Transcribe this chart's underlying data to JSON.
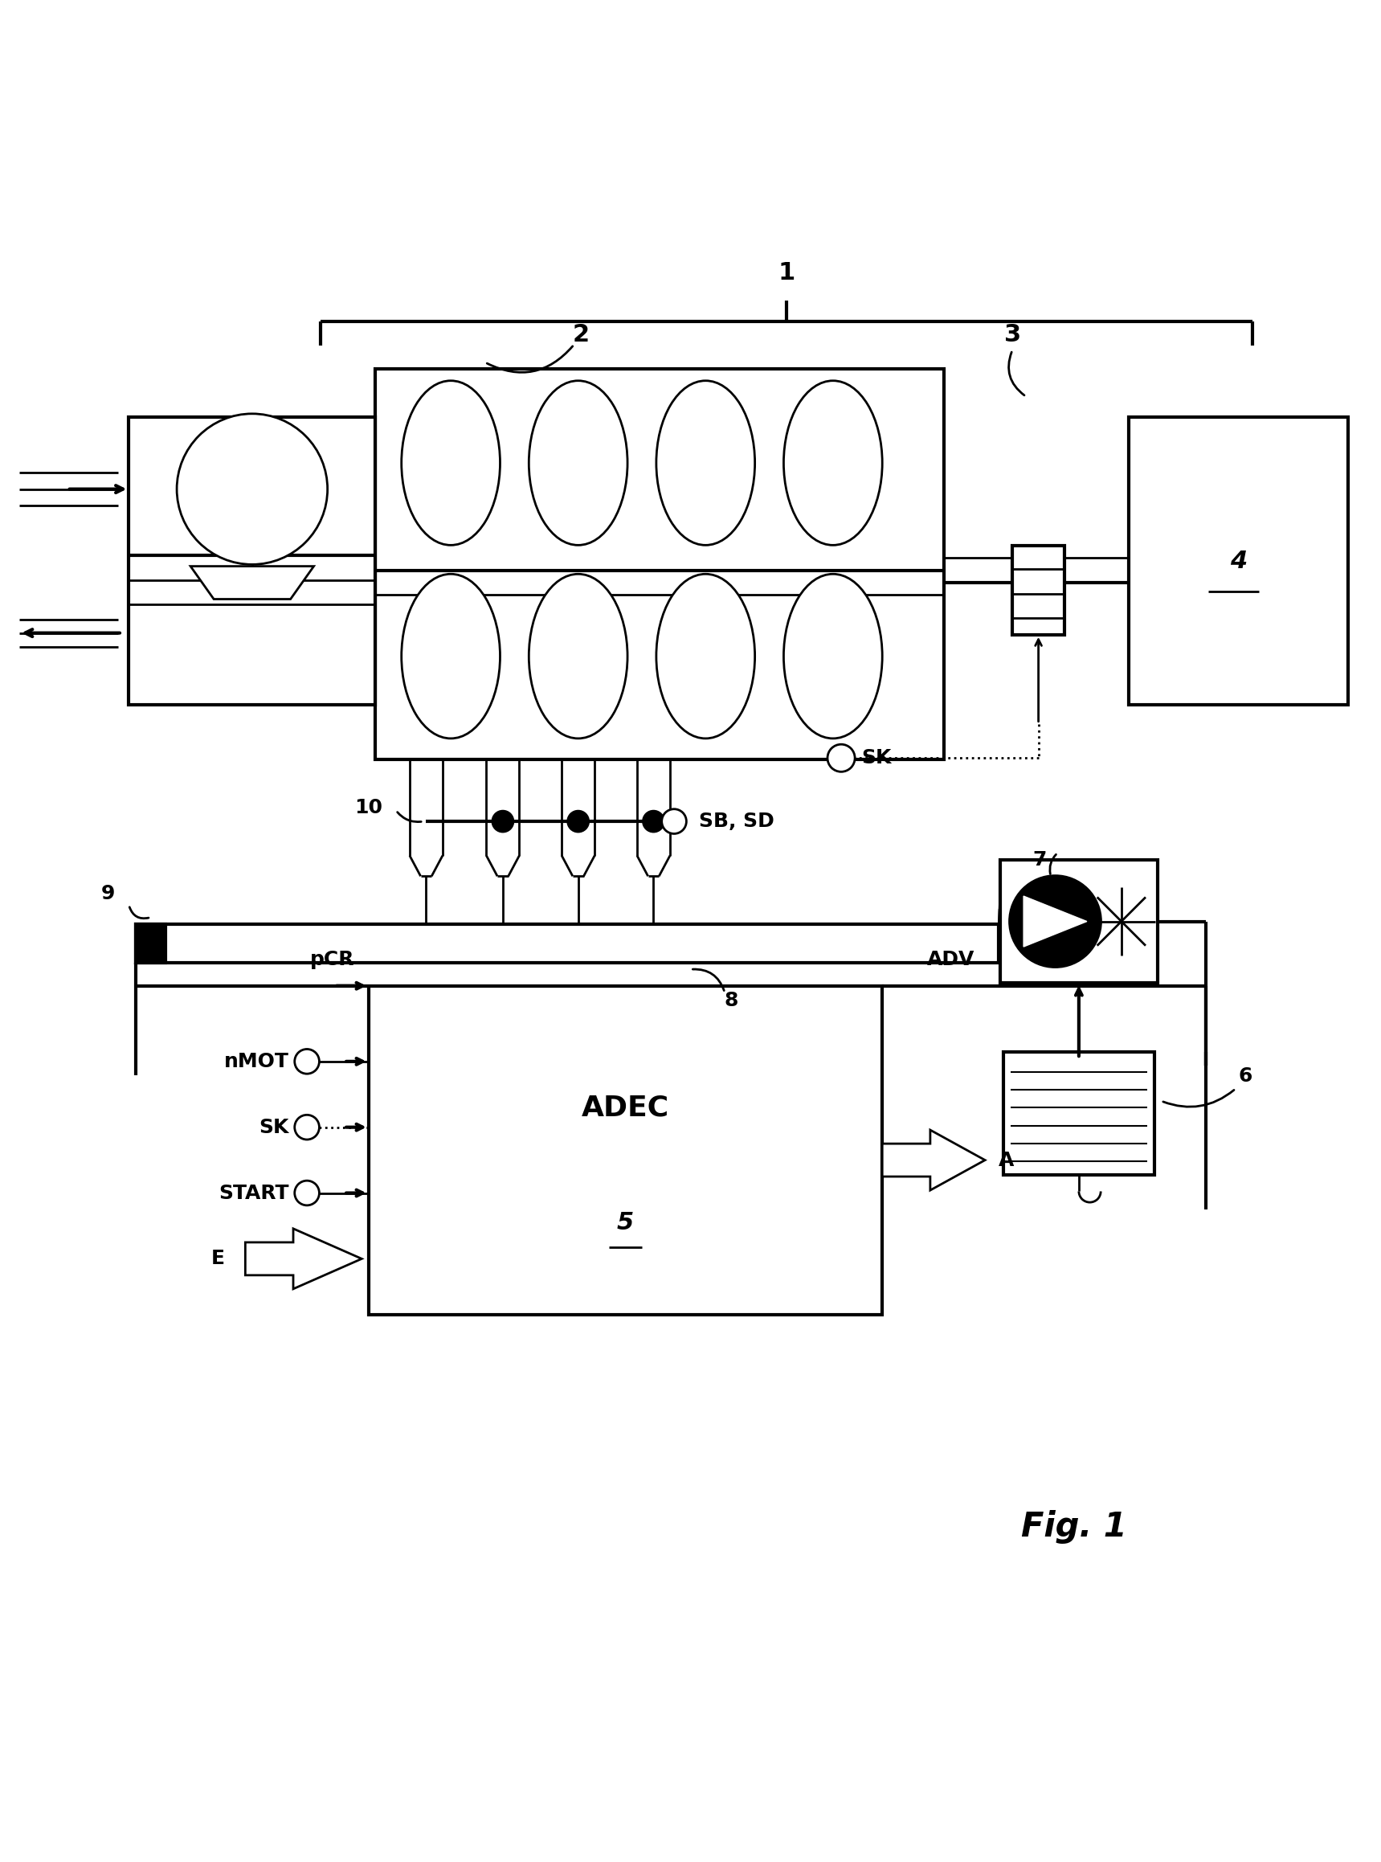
{
  "bg_color": "#ffffff",
  "line_color": "#000000",
  "fig_width": 17.19,
  "fig_height": 23.17,
  "label_1": "1",
  "label_2": "2",
  "label_3": "3",
  "label_4": "4",
  "label_5": "5",
  "label_6": "6",
  "label_7": "7",
  "label_8": "8",
  "label_9": "9",
  "label_10": "10",
  "label_SK": "SK",
  "label_SB_SD": "SB, SD",
  "label_ADV": "ADV",
  "label_pCR": "pCR",
  "label_nMOT": "nMOT",
  "label_SK2": "SK",
  "label_START": "START",
  "label_E": "E",
  "label_A": "A",
  "label_ADEC": "ADEC",
  "label_fig": "Fig. 1",
  "lw": 2.0,
  "lw_thick": 3.0,
  "lw_thin": 1.5,
  "fs_large": 22,
  "fs_med": 18,
  "fs_small": 16,
  "fs_fig": 30
}
